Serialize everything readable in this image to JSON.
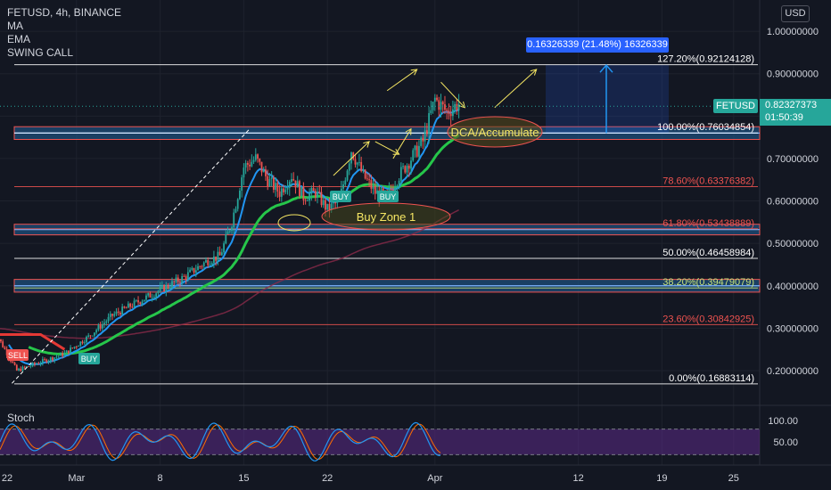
{
  "header": {
    "symbol_line": "FETUSD, 4h, BINANCE",
    "indicators": [
      "MA",
      "EMA",
      "SWING CALL"
    ]
  },
  "currency_button": "USD",
  "stoch_title": "Stoch",
  "price_label": {
    "symbol": "FETUSD",
    "price": "0.82327373",
    "countdown": "01:50:39"
  },
  "measure_label": "0.16326339 (21.48%) 16326339",
  "annotations": {
    "dca": "DCA/Accumulate",
    "buy_zone": "Buy Zone 1"
  },
  "signals": {
    "buy": "BUY",
    "sell": "SELL"
  },
  "colors": {
    "background": "#131722",
    "up": "#26a69a",
    "down": "#ef5350",
    "ema": "#2196f3",
    "ma": "#26c64a",
    "zone": "#1e4e7a",
    "stoch": "#5b2a86"
  },
  "chart_data": {
    "type": "candlestick",
    "symbol": "FETUSD",
    "timeframe": "4h",
    "exchange": "BINANCE",
    "y_scale": "linear",
    "ylim": [
      0.1,
      1.07
    ],
    "y_ticks": [
      "1.00000000",
      "0.90000000",
      "0.80000000",
      "0.70000000",
      "0.60000000",
      "0.50000000",
      "0.40000000",
      "0.30000000",
      "0.20000000"
    ],
    "y_tick_values": [
      1.0,
      0.9,
      0.8,
      0.7,
      0.6,
      0.5,
      0.4,
      0.3,
      0.2
    ],
    "x_ticks": [
      "22",
      "Mar",
      "8",
      "15",
      "22",
      "Apr",
      "12",
      "19",
      "25"
    ],
    "x_tick_days": [
      0,
      7,
      14,
      21,
      28,
      37,
      49,
      56,
      62
    ],
    "last_day": 35,
    "grid": true,
    "close_path": [
      [
        0,
        0.3
      ],
      [
        2,
        0.2
      ],
      [
        4,
        0.22
      ],
      [
        6,
        0.24
      ],
      [
        8,
        0.28
      ],
      [
        10,
        0.33
      ],
      [
        12,
        0.36
      ],
      [
        14,
        0.39
      ],
      [
        16,
        0.42
      ],
      [
        18,
        0.46
      ],
      [
        19,
        0.47
      ],
      [
        20,
        0.55
      ],
      [
        21,
        0.68
      ],
      [
        22,
        0.7
      ],
      [
        23,
        0.65
      ],
      [
        24,
        0.62
      ],
      [
        25,
        0.66
      ],
      [
        26,
        0.61
      ],
      [
        27,
        0.62
      ],
      [
        28,
        0.58
      ],
      [
        29,
        0.6
      ],
      [
        30,
        0.72
      ],
      [
        31,
        0.66
      ],
      [
        32,
        0.62
      ],
      [
        33,
        0.61
      ],
      [
        34,
        0.66
      ],
      [
        35,
        0.7
      ],
      [
        36,
        0.74
      ],
      [
        37,
        0.84
      ],
      [
        38,
        0.81
      ],
      [
        39,
        0.83
      ]
    ],
    "fib_levels": [
      {
        "label": "127.20%(0.92124128)",
        "value": 0.92124128,
        "color": "#ffffff"
      },
      {
        "label": "100.00%(0.76034854)",
        "value": 0.76034854,
        "color": "#ffffff"
      },
      {
        "label": "78.60%(0.63376382)",
        "value": 0.63376382,
        "color": "#ef5350"
      },
      {
        "label": "61.80%(0.53438889)",
        "value": 0.53438889,
        "color": "#ef5350"
      },
      {
        "label": "50.00%(0.46458984)",
        "value": 0.46458984,
        "color": "#ffffff"
      },
      {
        "label": "38.20%(0.39479079)",
        "value": 0.39479079,
        "color": "#c7e27a"
      },
      {
        "label": "23.60%(0.30842925)",
        "value": 0.30842925,
        "color": "#ef5350"
      },
      {
        "label": "0.00%(0.16883114)",
        "value": 0.16883114,
        "color": "#ffffff"
      }
    ],
    "zones": [
      [
        0.745,
        0.775
      ],
      [
        0.52,
        0.545
      ],
      [
        0.385,
        0.415
      ]
    ],
    "stoch_ticks": [
      "100.00",
      "50.00"
    ],
    "stoch_tick_values": [
      100,
      50
    ]
  }
}
